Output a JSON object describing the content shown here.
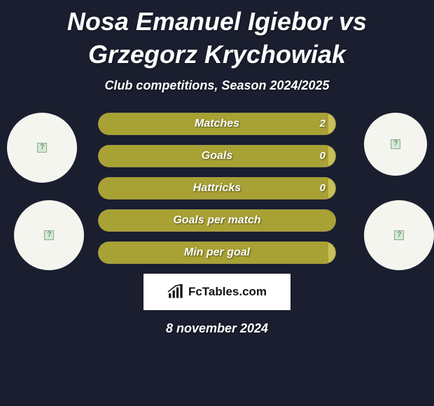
{
  "title": "Nosa Emanuel Igiebor vs Grzegorz Krychowiak",
  "subtitle": "Club competitions, Season 2024/2025",
  "date": "8 november 2024",
  "colors": {
    "background": "#1a1e2e",
    "bar_full": "#a8a134",
    "bar_partial_fill": "#a8a134",
    "bar_partial_bg": "#c8bf5a",
    "avatar_bg": "#f5f5f0",
    "logo_bg": "#ffffff",
    "text": "#ffffff"
  },
  "bars": [
    {
      "label": "Matches",
      "value": "2",
      "fill_pct": 97,
      "show_value": true
    },
    {
      "label": "Goals",
      "value": "0",
      "fill_pct": 97,
      "show_value": true
    },
    {
      "label": "Hattricks",
      "value": "0",
      "fill_pct": 97,
      "show_value": true
    },
    {
      "label": "Goals per match",
      "value": "",
      "fill_pct": 100,
      "show_value": false
    },
    {
      "label": "Min per goal",
      "value": "",
      "fill_pct": 97,
      "show_value": false
    }
  ],
  "logo_text": "FcTables.com",
  "avatars": {
    "top_left": "player-1-avatar",
    "top_right": "team-1-logo",
    "bottom_left": "player-2-avatar",
    "bottom_right": "team-2-logo"
  }
}
